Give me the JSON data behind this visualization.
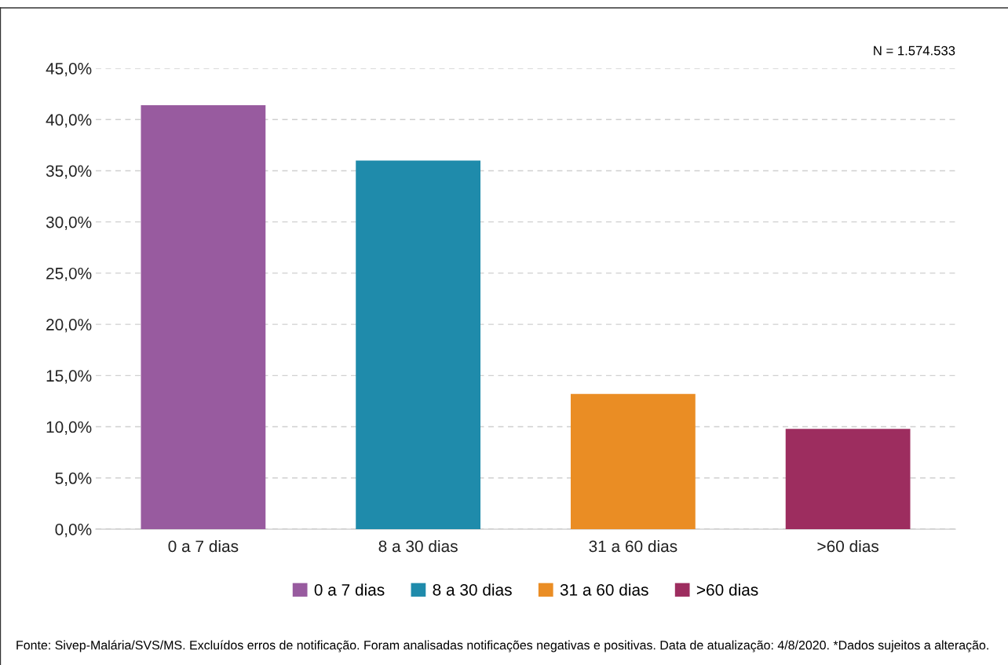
{
  "chart_data": {
    "type": "bar",
    "categories": [
      "0 a 7 dias",
      "8 a 30 dias",
      "31 a 60 dias",
      ">60 dias"
    ],
    "series": [
      {
        "name": "0 a 7 dias",
        "color": "#985b9f",
        "values": [
          41.4,
          null,
          null,
          null
        ]
      },
      {
        "name": "8 a 30 dias",
        "color": "#1f8bab",
        "values": [
          null,
          36.0,
          null,
          null
        ]
      },
      {
        "name": "31 a 60 dias",
        "color": "#ea8d24",
        "values": [
          null,
          null,
          13.2,
          null
        ]
      },
      {
        "name": ">60 dias",
        "color": "#9d2d5f",
        "values": [
          null,
          null,
          null,
          9.8
        ]
      }
    ],
    "ylim": [
      0,
      45
    ],
    "yticks": [
      {
        "value": 0,
        "label": "0,0%"
      },
      {
        "value": 5,
        "label": "5,0%"
      },
      {
        "value": 10,
        "label": "10,0%"
      },
      {
        "value": 15,
        "label": "15,0%"
      },
      {
        "value": 20,
        "label": "20,0%"
      },
      {
        "value": 25,
        "label": "25,0%"
      },
      {
        "value": 30,
        "label": "30,0%"
      },
      {
        "value": 35,
        "label": "35,0%"
      },
      {
        "value": 40,
        "label": "40,0%"
      },
      {
        "value": 45,
        "label": "45,0%"
      }
    ],
    "grid": "y",
    "legend": "bottom",
    "annotations": [
      "N = 1.574.533",
      "Fonte: Sivep-Malária/SVS/MS. Excluídos erros de notificação. Foram analisadas notificações negativas e positivas. Data de atualização: 4/8/2020. *Dados sujeitos a alteração."
    ]
  }
}
